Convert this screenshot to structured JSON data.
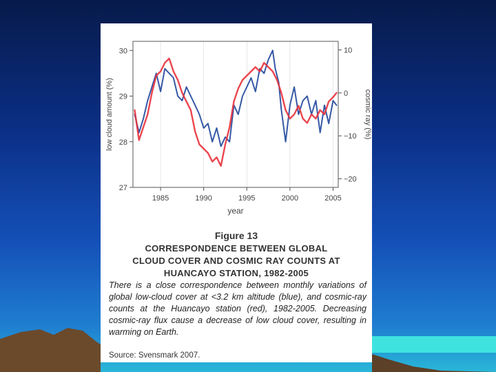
{
  "figure": {
    "number": "Figure 13",
    "title_lines": [
      "CORRESPONDENCE BETWEEN GLOBAL",
      "CLOUD COVER AND COSMIC RAY COUNTS AT",
      "HUANCAYO STATION, 1982-2005"
    ],
    "caption": "There is a close correspondence between monthly variations of global low-cloud cover at <3.2 km altitude (blue), and cosmic-ray counts at the Huancayo station (red), 1982-2005. Decreasing cosmic-ray flux cause a decrease of low cloud cover, resulting in warming on Earth.",
    "source": "Source: Svensmark 2007."
  },
  "colors": {
    "cloud": "#2a4fa0",
    "cosmic": "#e8323c",
    "sky_top": "#071a4a",
    "sky_bottom": "#2ab7d8",
    "mountain": "#6b4a2c"
  },
  "chart_data": {
    "type": "line",
    "xlabel": "year",
    "ylabel_left": "low cloud amount (%)",
    "ylabel_right": "cosmic ray (%)",
    "xlim": [
      1981.8,
      2005.6
    ],
    "ylim_left": [
      27,
      30.2
    ],
    "ylim_right": [
      -22,
      12
    ],
    "x_ticks": [
      1985,
      1990,
      1995,
      2000,
      2005
    ],
    "y_ticks_left": [
      27,
      28,
      29,
      30
    ],
    "y_ticks_right": [
      10,
      0,
      -10,
      -20
    ],
    "series": [
      {
        "name": "low cloud amount (blue)",
        "axis": "left",
        "x": [
          1982.0,
          1982.5,
          1983.0,
          1983.5,
          1984.0,
          1984.5,
          1985.0,
          1985.5,
          1986.0,
          1986.5,
          1987.0,
          1987.5,
          1988.0,
          1988.5,
          1989.0,
          1989.5,
          1990.0,
          1990.5,
          1991.0,
          1991.5,
          1992.0,
          1992.5,
          1993.0,
          1993.5,
          1994.0,
          1994.5,
          1995.0,
          1995.5,
          1996.0,
          1996.5,
          1997.0,
          1997.5,
          1998.0,
          1998.3,
          1998.7,
          1999.0,
          1999.5,
          2000.0,
          2000.5,
          2001.0,
          2001.5,
          2002.0,
          2002.5,
          2003.0,
          2003.5,
          2004.0,
          2004.5,
          2005.0,
          2005.4
        ],
        "values": [
          28.6,
          28.2,
          28.5,
          28.9,
          29.2,
          29.5,
          29.1,
          29.6,
          29.5,
          29.4,
          29.0,
          28.9,
          29.2,
          29.0,
          28.8,
          28.6,
          28.3,
          28.4,
          28.0,
          28.3,
          27.9,
          28.1,
          28.0,
          28.8,
          28.6,
          29.0,
          29.2,
          29.4,
          29.1,
          29.6,
          29.5,
          29.8,
          30.0,
          29.6,
          29.3,
          28.7,
          28.0,
          28.8,
          29.2,
          28.6,
          28.9,
          29.0,
          28.6,
          28.9,
          28.2,
          28.8,
          28.4,
          28.9,
          28.8
        ]
      },
      {
        "name": "cosmic ray counts (red)",
        "axis": "right",
        "x": [
          1982.0,
          1982.5,
          1983.0,
          1983.5,
          1984.0,
          1984.5,
          1985.0,
          1985.5,
          1986.0,
          1986.5,
          1987.0,
          1987.5,
          1988.0,
          1988.5,
          1989.0,
          1989.5,
          1990.0,
          1990.5,
          1991.0,
          1991.5,
          1992.0,
          1992.5,
          1993.0,
          1993.5,
          1994.0,
          1994.5,
          1995.0,
          1995.5,
          1996.0,
          1996.5,
          1997.0,
          1997.5,
          1998.0,
          1998.5,
          1999.0,
          1999.5,
          2000.0,
          2000.5,
          2001.0,
          2001.5,
          2002.0,
          2002.5,
          2003.0,
          2003.5,
          2004.0,
          2004.5,
          2005.0,
          2005.4
        ],
        "values": [
          -4,
          -11,
          -8,
          -5,
          0,
          4,
          5,
          7,
          8,
          5,
          3,
          0,
          -2,
          -4,
          -9,
          -12,
          -13,
          -14,
          -16,
          -15,
          -17,
          -12,
          -8,
          -2,
          1,
          3,
          4,
          5,
          6,
          5,
          7,
          6,
          5,
          3,
          0,
          -4,
          -6,
          -5,
          -3,
          -6,
          -7,
          -5,
          -6,
          -4,
          -5,
          -2,
          -1,
          0
        ]
      }
    ]
  }
}
